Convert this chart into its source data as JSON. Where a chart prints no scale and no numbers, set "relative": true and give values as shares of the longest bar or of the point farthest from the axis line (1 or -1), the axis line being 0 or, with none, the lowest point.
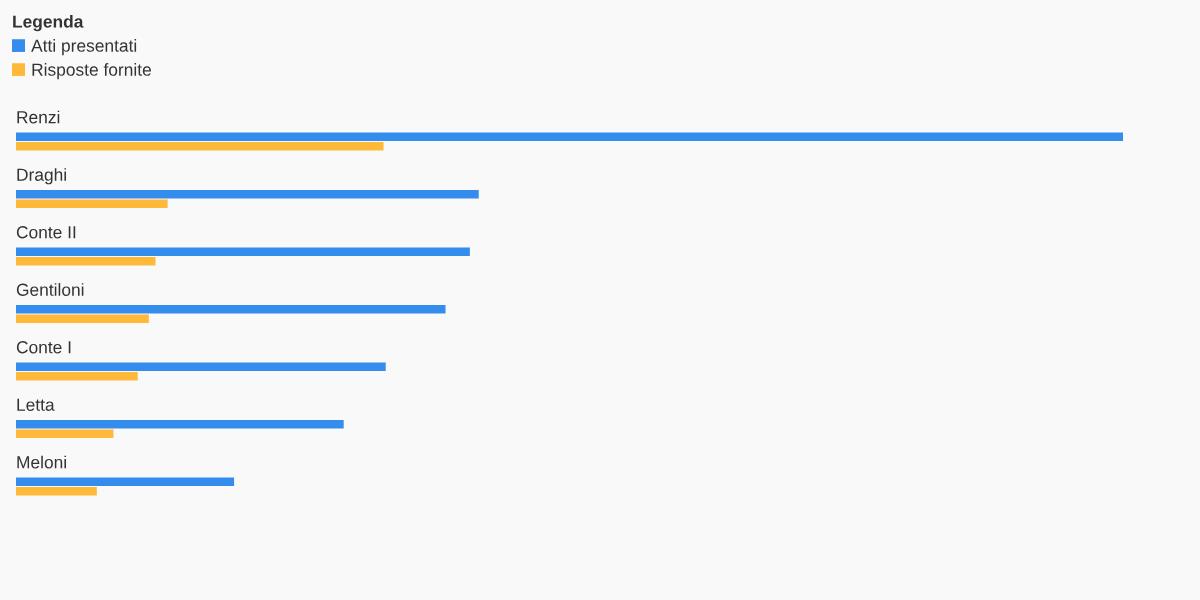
{
  "chart_data": {
    "type": "bar",
    "orientation": "horizontal",
    "relative": true,
    "legend": "top left",
    "legend_title": "Legenda",
    "tick_labels": "y",
    "categories": [
      "Renzi",
      "Draghi",
      "Conte II",
      "Gentiloni",
      "Conte I",
      "Letta",
      "Meloni"
    ],
    "series": [
      {
        "name": "Atti presentati",
        "color": "#348ded",
        "values": [
          1,
          0.418,
          0.41,
          0.388,
          0.334,
          0.296,
          0.197
        ]
      },
      {
        "name": "Risposte fornite",
        "color": "#ffb938",
        "values": [
          0.332,
          0.137,
          0.126,
          0.12,
          0.11,
          0.088,
          0.073
        ]
      }
    ]
  }
}
